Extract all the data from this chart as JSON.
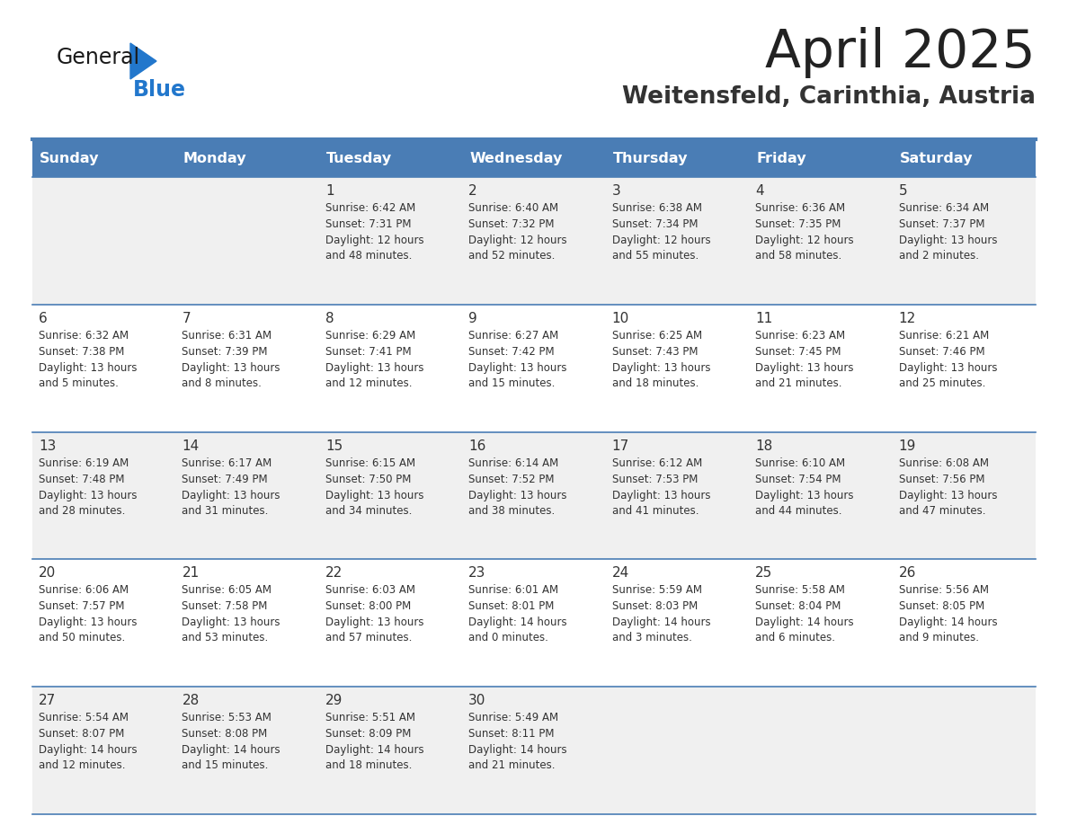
{
  "title": "April 2025",
  "subtitle": "Weitensfeld, Carinthia, Austria",
  "days_of_week": [
    "Sunday",
    "Monday",
    "Tuesday",
    "Wednesday",
    "Thursday",
    "Friday",
    "Saturday"
  ],
  "header_bg": "#4a7db5",
  "header_text": "#ffffff",
  "row_bg_odd": "#f0f0f0",
  "row_bg_even": "#ffffff",
  "border_color": "#4a7db5",
  "text_color": "#333333",
  "title_color": "#222222",
  "subtitle_color": "#333333",
  "logo_general_color": "#1a1a1a",
  "logo_blue_color": "#2277cc",
  "logo_triangle_color": "#2277cc",
  "calendar": [
    [
      {
        "day": "",
        "sunrise": "",
        "sunset": "",
        "daylight": ""
      },
      {
        "day": "",
        "sunrise": "",
        "sunset": "",
        "daylight": ""
      },
      {
        "day": "1",
        "sunrise": "Sunrise: 6:42 AM",
        "sunset": "Sunset: 7:31 PM",
        "daylight": "Daylight: 12 hours\nand 48 minutes."
      },
      {
        "day": "2",
        "sunrise": "Sunrise: 6:40 AM",
        "sunset": "Sunset: 7:32 PM",
        "daylight": "Daylight: 12 hours\nand 52 minutes."
      },
      {
        "day": "3",
        "sunrise": "Sunrise: 6:38 AM",
        "sunset": "Sunset: 7:34 PM",
        "daylight": "Daylight: 12 hours\nand 55 minutes."
      },
      {
        "day": "4",
        "sunrise": "Sunrise: 6:36 AM",
        "sunset": "Sunset: 7:35 PM",
        "daylight": "Daylight: 12 hours\nand 58 minutes."
      },
      {
        "day": "5",
        "sunrise": "Sunrise: 6:34 AM",
        "sunset": "Sunset: 7:37 PM",
        "daylight": "Daylight: 13 hours\nand 2 minutes."
      }
    ],
    [
      {
        "day": "6",
        "sunrise": "Sunrise: 6:32 AM",
        "sunset": "Sunset: 7:38 PM",
        "daylight": "Daylight: 13 hours\nand 5 minutes."
      },
      {
        "day": "7",
        "sunrise": "Sunrise: 6:31 AM",
        "sunset": "Sunset: 7:39 PM",
        "daylight": "Daylight: 13 hours\nand 8 minutes."
      },
      {
        "day": "8",
        "sunrise": "Sunrise: 6:29 AM",
        "sunset": "Sunset: 7:41 PM",
        "daylight": "Daylight: 13 hours\nand 12 minutes."
      },
      {
        "day": "9",
        "sunrise": "Sunrise: 6:27 AM",
        "sunset": "Sunset: 7:42 PM",
        "daylight": "Daylight: 13 hours\nand 15 minutes."
      },
      {
        "day": "10",
        "sunrise": "Sunrise: 6:25 AM",
        "sunset": "Sunset: 7:43 PM",
        "daylight": "Daylight: 13 hours\nand 18 minutes."
      },
      {
        "day": "11",
        "sunrise": "Sunrise: 6:23 AM",
        "sunset": "Sunset: 7:45 PM",
        "daylight": "Daylight: 13 hours\nand 21 minutes."
      },
      {
        "day": "12",
        "sunrise": "Sunrise: 6:21 AM",
        "sunset": "Sunset: 7:46 PM",
        "daylight": "Daylight: 13 hours\nand 25 minutes."
      }
    ],
    [
      {
        "day": "13",
        "sunrise": "Sunrise: 6:19 AM",
        "sunset": "Sunset: 7:48 PM",
        "daylight": "Daylight: 13 hours\nand 28 minutes."
      },
      {
        "day": "14",
        "sunrise": "Sunrise: 6:17 AM",
        "sunset": "Sunset: 7:49 PM",
        "daylight": "Daylight: 13 hours\nand 31 minutes."
      },
      {
        "day": "15",
        "sunrise": "Sunrise: 6:15 AM",
        "sunset": "Sunset: 7:50 PM",
        "daylight": "Daylight: 13 hours\nand 34 minutes."
      },
      {
        "day": "16",
        "sunrise": "Sunrise: 6:14 AM",
        "sunset": "Sunset: 7:52 PM",
        "daylight": "Daylight: 13 hours\nand 38 minutes."
      },
      {
        "day": "17",
        "sunrise": "Sunrise: 6:12 AM",
        "sunset": "Sunset: 7:53 PM",
        "daylight": "Daylight: 13 hours\nand 41 minutes."
      },
      {
        "day": "18",
        "sunrise": "Sunrise: 6:10 AM",
        "sunset": "Sunset: 7:54 PM",
        "daylight": "Daylight: 13 hours\nand 44 minutes."
      },
      {
        "day": "19",
        "sunrise": "Sunrise: 6:08 AM",
        "sunset": "Sunset: 7:56 PM",
        "daylight": "Daylight: 13 hours\nand 47 minutes."
      }
    ],
    [
      {
        "day": "20",
        "sunrise": "Sunrise: 6:06 AM",
        "sunset": "Sunset: 7:57 PM",
        "daylight": "Daylight: 13 hours\nand 50 minutes."
      },
      {
        "day": "21",
        "sunrise": "Sunrise: 6:05 AM",
        "sunset": "Sunset: 7:58 PM",
        "daylight": "Daylight: 13 hours\nand 53 minutes."
      },
      {
        "day": "22",
        "sunrise": "Sunrise: 6:03 AM",
        "sunset": "Sunset: 8:00 PM",
        "daylight": "Daylight: 13 hours\nand 57 minutes."
      },
      {
        "day": "23",
        "sunrise": "Sunrise: 6:01 AM",
        "sunset": "Sunset: 8:01 PM",
        "daylight": "Daylight: 14 hours\nand 0 minutes."
      },
      {
        "day": "24",
        "sunrise": "Sunrise: 5:59 AM",
        "sunset": "Sunset: 8:03 PM",
        "daylight": "Daylight: 14 hours\nand 3 minutes."
      },
      {
        "day": "25",
        "sunrise": "Sunrise: 5:58 AM",
        "sunset": "Sunset: 8:04 PM",
        "daylight": "Daylight: 14 hours\nand 6 minutes."
      },
      {
        "day": "26",
        "sunrise": "Sunrise: 5:56 AM",
        "sunset": "Sunset: 8:05 PM",
        "daylight": "Daylight: 14 hours\nand 9 minutes."
      }
    ],
    [
      {
        "day": "27",
        "sunrise": "Sunrise: 5:54 AM",
        "sunset": "Sunset: 8:07 PM",
        "daylight": "Daylight: 14 hours\nand 12 minutes."
      },
      {
        "day": "28",
        "sunrise": "Sunrise: 5:53 AM",
        "sunset": "Sunset: 8:08 PM",
        "daylight": "Daylight: 14 hours\nand 15 minutes."
      },
      {
        "day": "29",
        "sunrise": "Sunrise: 5:51 AM",
        "sunset": "Sunset: 8:09 PM",
        "daylight": "Daylight: 14 hours\nand 18 minutes."
      },
      {
        "day": "30",
        "sunrise": "Sunrise: 5:49 AM",
        "sunset": "Sunset: 8:11 PM",
        "daylight": "Daylight: 14 hours\nand 21 minutes."
      },
      {
        "day": "",
        "sunrise": "",
        "sunset": "",
        "daylight": ""
      },
      {
        "day": "",
        "sunrise": "",
        "sunset": "",
        "daylight": ""
      },
      {
        "day": "",
        "sunrise": "",
        "sunset": "",
        "daylight": ""
      }
    ]
  ]
}
